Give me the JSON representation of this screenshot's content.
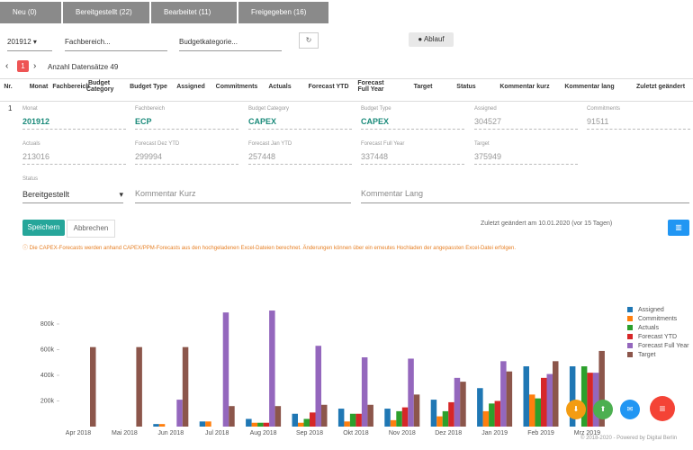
{
  "tabs": [
    "Neu (0)",
    "Bereitgestellt (22)",
    "Bearbeitet (11)",
    "Freigegeben (16)"
  ],
  "filters": {
    "month": "201912",
    "department": "Fachbereich...",
    "category": "Budgetkategorie...",
    "flow_button": "Ablauf"
  },
  "pagination": {
    "page": "1",
    "count_label": "Anzahl Datensätze",
    "count": "49"
  },
  "table": {
    "headers": [
      "Nr.",
      "Monat",
      "Fachbereich",
      "Budget Category",
      "Budget Type",
      "Assigned",
      "Commitments",
      "Actuals",
      "Forecast YTD",
      "Forecast Full Year",
      "Target",
      "Status",
      "Kommentar kurz",
      "Kommentar lang",
      "Zuletzt geändert"
    ],
    "row_nr": "1"
  },
  "fields": [
    {
      "label": "Monat",
      "value": "201912"
    },
    {
      "label": "Fachbereich",
      "value": "ECP"
    },
    {
      "label": "Budget Category",
      "value": "CAPEX"
    },
    {
      "label": "Budget Type",
      "value": "CAPEX"
    },
    {
      "label": "Assigned",
      "value": "304527"
    },
    {
      "label": "Commitments",
      "value": "91511"
    },
    {
      "label": "Actuals",
      "value": "213016"
    },
    {
      "label": "Forecast Dez YTD",
      "value": "299994"
    },
    {
      "label": "Forecast Jan YTD",
      "value": "257448"
    },
    {
      "label": "Forecast Full Year",
      "value": "337448"
    },
    {
      "label": "Target",
      "value": "375949"
    }
  ],
  "status": {
    "label": "Status",
    "value": "Bereitgestellt"
  },
  "comments": {
    "short": "Kommentar Kurz",
    "long": "Kommentar Lang"
  },
  "buttons": {
    "save": "Speichern",
    "cancel": "Abbrechen"
  },
  "last_changed": "Zuletzt geändert am 10.01.2020 (vor 15 Tagen)",
  "info": "ⓘ Die CAPEX-Forecasts werden anhand CAPEX/PPM-Forecasts aus den hochgeladenen Excel-Dateien berechnet. Änderungen können über ein erneutes Hochladen der angepassten Excel-Datei erfolgen.",
  "footer": "© 2018-2020 - Powered by Digital Berlin",
  "chart_data": {
    "type": "bar",
    "categories": [
      "Apr 2018",
      "Mai 2018",
      "Jun 2018",
      "Jul 2018",
      "Aug 2018",
      "Sep 2018",
      "Okt 2018",
      "Nov 2018",
      "Dez 2018",
      "Jan 2019",
      "Feb 2019",
      "Mrz 2019"
    ],
    "ylim": [
      0,
      950000
    ],
    "yticks": [
      {
        "value": 200000,
        "label": "200k"
      },
      {
        "value": 400000,
        "label": "400k"
      },
      {
        "value": 600000,
        "label": "600k"
      },
      {
        "value": 800000,
        "label": "800k"
      }
    ],
    "grid": false,
    "series": [
      {
        "name": "Assigned",
        "color": "#1f77b4",
        "values": [
          0,
          0,
          20000,
          40000,
          60000,
          100000,
          140000,
          140000,
          210000,
          300000,
          470000,
          470000
        ]
      },
      {
        "name": "Commitments",
        "color": "#ff7f0e",
        "values": [
          0,
          0,
          20000,
          40000,
          30000,
          30000,
          40000,
          50000,
          80000,
          120000,
          250000,
          0
        ]
      },
      {
        "name": "Actuals",
        "color": "#2ca02c",
        "values": [
          0,
          0,
          0,
          0,
          30000,
          60000,
          100000,
          120000,
          120000,
          180000,
          220000,
          470000
        ]
      },
      {
        "name": "Forecast YTD",
        "color": "#d62728",
        "values": [
          0,
          0,
          0,
          0,
          30000,
          110000,
          100000,
          150000,
          190000,
          200000,
          380000,
          420000
        ]
      },
      {
        "name": "Forecast Full Year",
        "color": "#9467bd",
        "values": [
          0,
          0,
          210000,
          890000,
          905000,
          630000,
          540000,
          530000,
          380000,
          510000,
          410000,
          420000
        ]
      },
      {
        "name": "Target",
        "color": "#8c564b",
        "values": [
          620000,
          620000,
          620000,
          160000,
          160000,
          170000,
          170000,
          250000,
          350000,
          430000,
          510000,
          590000
        ]
      }
    ]
  }
}
